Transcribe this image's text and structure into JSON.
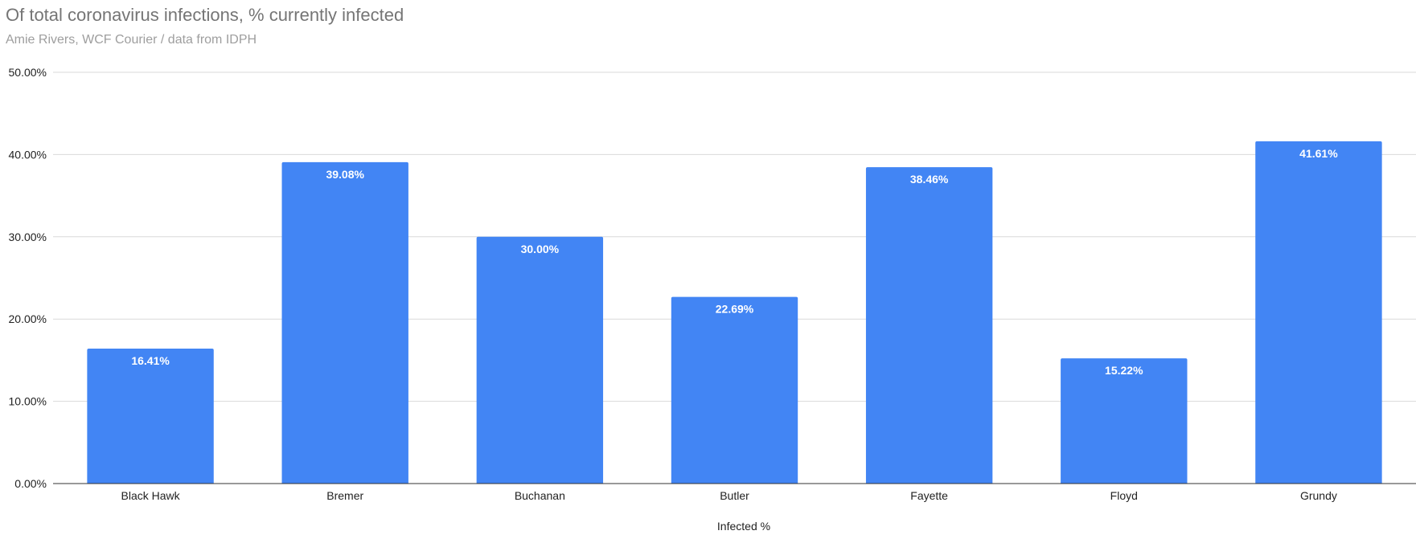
{
  "chart_data": {
    "type": "bar",
    "title": "Of total coronavirus infections, % currently infected",
    "subtitle": "Amie Rivers, WCF Courier / data from IDPH",
    "xlabel": "Infected %",
    "ylabel": "",
    "categories": [
      "Black Hawk",
      "Bremer",
      "Buchanan",
      "Butler",
      "Fayette",
      "Floyd",
      "Grundy"
    ],
    "values": [
      16.41,
      39.08,
      30.0,
      22.69,
      38.46,
      15.22,
      41.61
    ],
    "data_labels": [
      "16.41%",
      "39.08%",
      "30.00%",
      "22.69%",
      "38.46%",
      "15.22%",
      "41.61%"
    ],
    "ylim": [
      0,
      50
    ],
    "yticks": [
      0,
      10,
      20,
      30,
      40,
      50
    ],
    "ytick_labels": [
      "0.00%",
      "10.00%",
      "20.00%",
      "30.00%",
      "40.00%",
      "50.00%"
    ],
    "grid": true,
    "legend": "none",
    "bar_color": "#4285f4"
  }
}
